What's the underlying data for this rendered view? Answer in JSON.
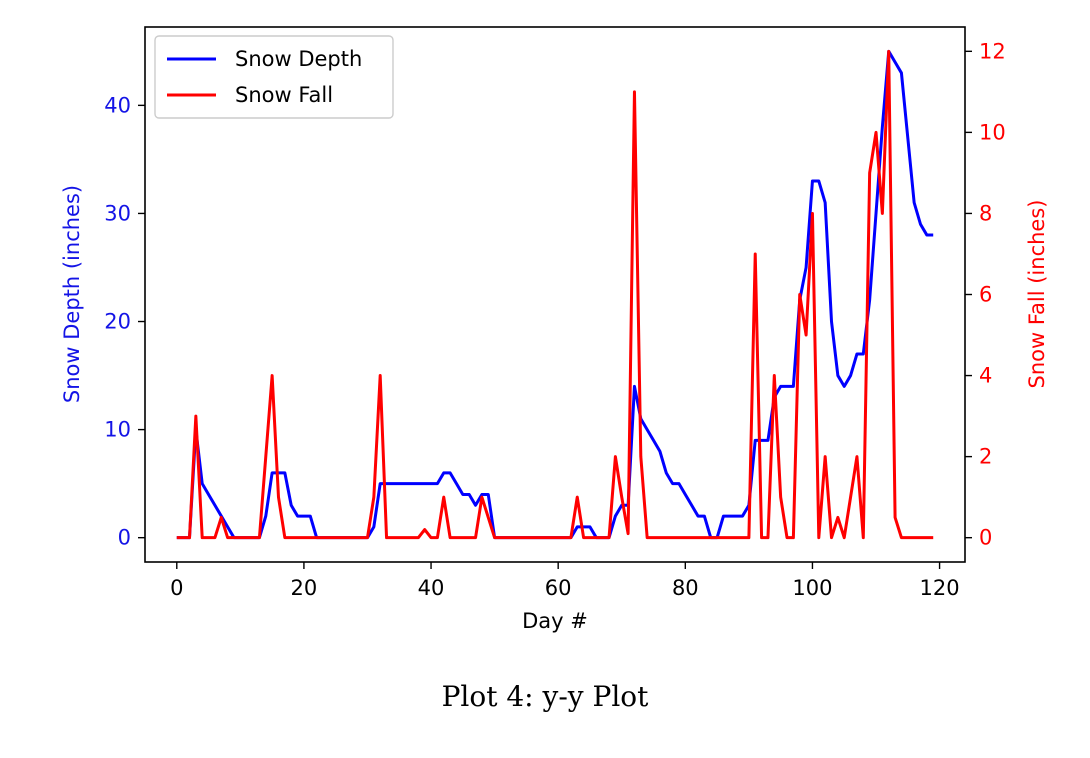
{
  "caption": "Plot 4: y-y Plot",
  "chart_data": {
    "type": "line",
    "title": "",
    "xlabel": "Day #",
    "ylabel_left": "Snow Depth (inches)",
    "ylabel_right": "Snow Fall (inches)",
    "xlim": [
      -5,
      124
    ],
    "ylim_left": [
      -2.25,
      47.25
    ],
    "ylim_right": [
      -0.6,
      12.6
    ],
    "x_ticks": [
      0,
      20,
      40,
      60,
      80,
      100,
      120
    ],
    "y_left_ticks": [
      0,
      10,
      20,
      30,
      40
    ],
    "y_right_ticks": [
      0,
      2,
      4,
      6,
      8,
      10,
      12
    ],
    "legend_position": "upper-left",
    "colors": {
      "left_axis": "#1414e6",
      "right_axis": "#ff0000",
      "depth": "#0000ff",
      "fall": "#ff0000"
    },
    "series": [
      {
        "name": "Snow Depth",
        "axis": "left",
        "color": "#0000ff",
        "x": [
          0,
          1,
          2,
          3,
          4,
          5,
          6,
          7,
          8,
          9,
          10,
          11,
          12,
          13,
          14,
          15,
          16,
          17,
          18,
          19,
          20,
          21,
          22,
          23,
          24,
          25,
          26,
          27,
          28,
          29,
          30,
          31,
          32,
          33,
          34,
          35,
          36,
          37,
          38,
          39,
          40,
          41,
          42,
          43,
          44,
          45,
          46,
          47,
          48,
          49,
          50,
          51,
          52,
          53,
          54,
          55,
          56,
          57,
          58,
          59,
          60,
          61,
          62,
          63,
          64,
          65,
          66,
          67,
          68,
          69,
          70,
          71,
          72,
          73,
          74,
          75,
          76,
          77,
          78,
          79,
          80,
          81,
          82,
          83,
          84,
          85,
          86,
          87,
          88,
          89,
          90,
          91,
          92,
          93,
          94,
          95,
          96,
          97,
          98,
          99,
          100,
          101,
          102,
          103,
          104,
          105,
          106,
          107,
          108,
          109,
          110,
          111,
          112,
          113,
          114,
          115,
          116,
          117,
          118,
          119
        ],
        "y": [
          0,
          0,
          0,
          10,
          5,
          4,
          3,
          2,
          1,
          0,
          0,
          0,
          0,
          0,
          2,
          6,
          6,
          6,
          3,
          2,
          2,
          2,
          0,
          0,
          0,
          0,
          0,
          0,
          0,
          0,
          0,
          1,
          5,
          5,
          5,
          5,
          5,
          5,
          5,
          5,
          5,
          5,
          6,
          6,
          5,
          4,
          4,
          3,
          4,
          4,
          0,
          0,
          0,
          0,
          0,
          0,
          0,
          0,
          0,
          0,
          0,
          0,
          0,
          1,
          1,
          1,
          0,
          0,
          0,
          2,
          3,
          3,
          14,
          11,
          10,
          9,
          8,
          6,
          5,
          5,
          4,
          3,
          2,
          2,
          0,
          0,
          2,
          2,
          2,
          2,
          3,
          9,
          9,
          9,
          13,
          14,
          14,
          14,
          22,
          25,
          33,
          33,
          31,
          20,
          15,
          14,
          15,
          17,
          17,
          22,
          30,
          38,
          45,
          44,
          43,
          37,
          31,
          29,
          28,
          28
        ]
      },
      {
        "name": "Snow Fall",
        "axis": "right",
        "color": "#ff0000",
        "x": [
          0,
          1,
          2,
          3,
          4,
          5,
          6,
          7,
          8,
          9,
          10,
          11,
          12,
          13,
          14,
          15,
          16,
          17,
          18,
          19,
          20,
          21,
          22,
          23,
          24,
          25,
          26,
          27,
          28,
          29,
          30,
          31,
          32,
          33,
          34,
          35,
          36,
          37,
          38,
          39,
          40,
          41,
          42,
          43,
          44,
          45,
          46,
          47,
          48,
          49,
          50,
          51,
          52,
          53,
          54,
          55,
          56,
          57,
          58,
          59,
          60,
          61,
          62,
          63,
          64,
          65,
          66,
          67,
          68,
          69,
          70,
          71,
          72,
          73,
          74,
          75,
          76,
          77,
          78,
          79,
          80,
          81,
          82,
          83,
          84,
          85,
          86,
          87,
          88,
          89,
          90,
          91,
          92,
          93,
          94,
          95,
          96,
          97,
          98,
          99,
          100,
          101,
          102,
          103,
          104,
          105,
          106,
          107,
          108,
          109,
          110,
          111,
          112,
          113,
          114,
          115,
          116,
          117,
          118,
          119
        ],
        "y": [
          0,
          0,
          0,
          3,
          0,
          0,
          0,
          0.5,
          0,
          0,
          0,
          0,
          0,
          0,
          2,
          4,
          1,
          0,
          0,
          0,
          0,
          0,
          0,
          0,
          0,
          0,
          0,
          0,
          0,
          0,
          0,
          1,
          4,
          0,
          0,
          0,
          0,
          0,
          0,
          0.2,
          0,
          0,
          1,
          0,
          0,
          0,
          0,
          0,
          1,
          0.5,
          0,
          0,
          0,
          0,
          0,
          0,
          0,
          0,
          0,
          0,
          0,
          0,
          0,
          1,
          0,
          0,
          0,
          0,
          0,
          2,
          1,
          0.1,
          11,
          2,
          0,
          0,
          0,
          0,
          0,
          0,
          0,
          0,
          0,
          0,
          0,
          0,
          0,
          0,
          0,
          0,
          0,
          7,
          0,
          0,
          4,
          1,
          0,
          0,
          6,
          5,
          8,
          0,
          2,
          0,
          0.5,
          0,
          1,
          2,
          0,
          9,
          10,
          8,
          12,
          0.5,
          0,
          0,
          0,
          0,
          0,
          0
        ]
      }
    ],
    "legend": [
      {
        "label": "Snow Depth",
        "color": "#0000ff"
      },
      {
        "label": "Snow Fall",
        "color": "#ff0000"
      }
    ]
  }
}
